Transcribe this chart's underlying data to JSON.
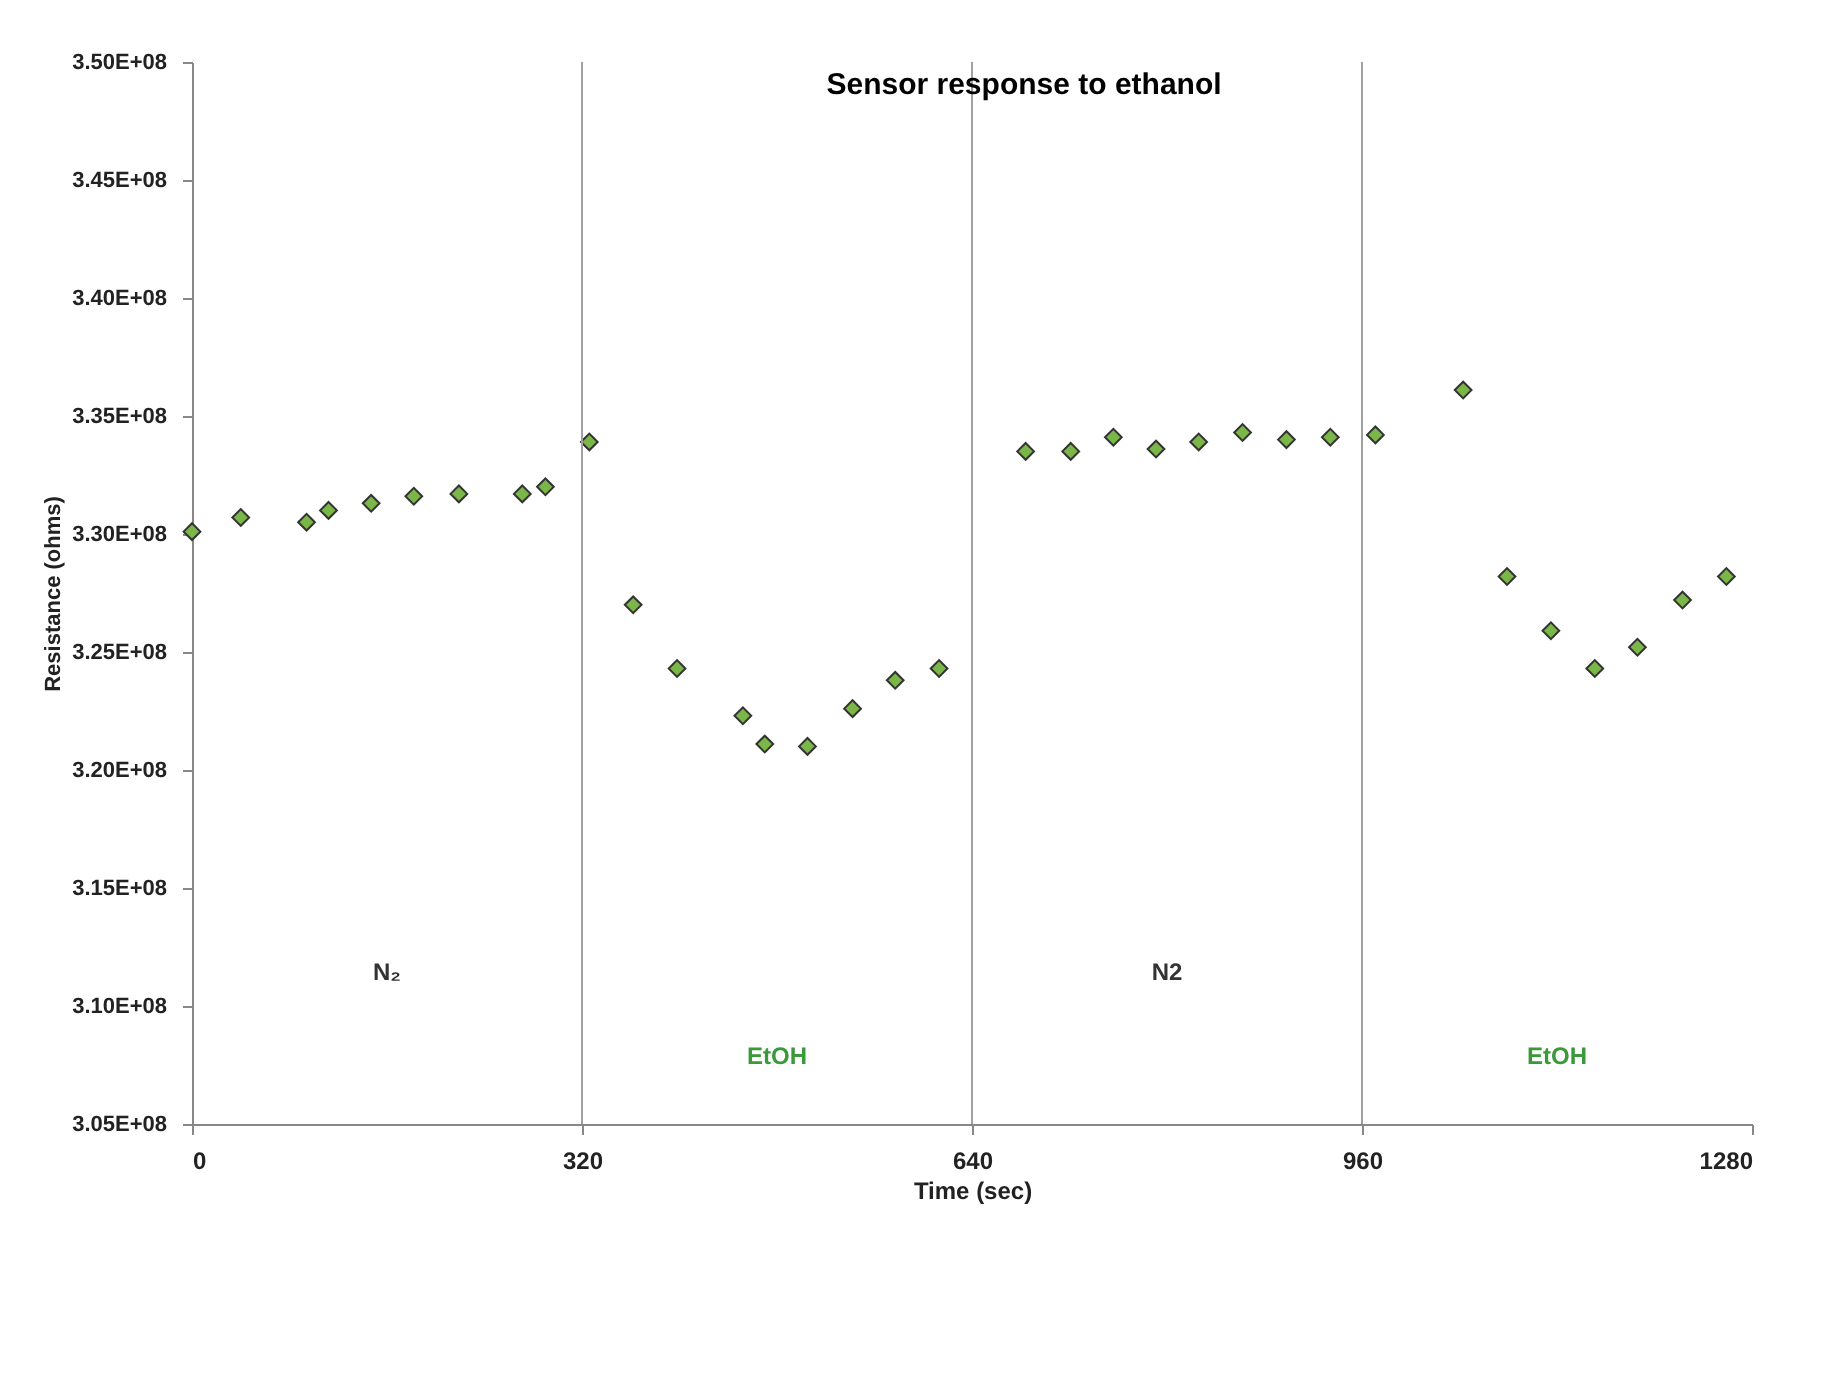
{
  "chart_data": {
    "type": "scatter",
    "title": "Sensor response to ethanol",
    "xlabel": "Time (sec)",
    "ylabel": "Resistance (ohms)",
    "xlim": [
      0,
      1280
    ],
    "xticks": [
      0,
      320,
      640,
      960,
      1280
    ],
    "ylim": [
      305000000,
      350000000
    ],
    "yticks": [
      {
        "value": 305000000,
        "label": "3.05E+08"
      },
      {
        "value": 310000000,
        "label": "3.10E+08"
      },
      {
        "value": 315000000,
        "label": "3.15E+08"
      },
      {
        "value": 320000000,
        "label": "3.20E+08"
      },
      {
        "value": 325000000,
        "label": "3.25E+08"
      },
      {
        "value": 330000000,
        "label": "3.30E+08"
      },
      {
        "value": 335000000,
        "label": "3.35E+08"
      },
      {
        "value": 340000000,
        "label": "3.40E+08"
      },
      {
        "value": 345000000,
        "label": "3.45E+08"
      },
      {
        "value": 350000000,
        "label": "3.50E+08"
      }
    ],
    "grid": false,
    "marker": "diamond",
    "series": [
      {
        "color": "#7ab648",
        "x": [
          0,
          40,
          94,
          112,
          147,
          182,
          219,
          271,
          290,
          326,
          362,
          398,
          452,
          470,
          505,
          542,
          577,
          613,
          684,
          721,
          756,
          791,
          826,
          862,
          898,
          934,
          971,
          1043,
          1079,
          1115,
          1151,
          1186,
          1223,
          1259
        ],
        "values": [
          330100000,
          330700000,
          330500000,
          331000000,
          331300000,
          331600000,
          331700000,
          331700000,
          332000000,
          333900000,
          327000000,
          324300000,
          322300000,
          321100000,
          321000000,
          322600000,
          323800000,
          324300000,
          333500000,
          333500000,
          334100000,
          333600000,
          333900000,
          334300000,
          334000000,
          334100000,
          334200000,
          336100000,
          328200000,
          325900000,
          324300000,
          325200000,
          327200000,
          328200000
        ]
      }
    ],
    "ref_lines": [
      {
        "axis": "x",
        "value": 320,
        "color": "#a0a0a0"
      },
      {
        "axis": "x",
        "value": 640,
        "color": "#a0a0a0"
      },
      {
        "axis": "x",
        "value": 960,
        "color": "#a0a0a0"
      }
    ],
    "annotations": [
      "N₂",
      "EtOH",
      "N2",
      "EtOH"
    ]
  }
}
